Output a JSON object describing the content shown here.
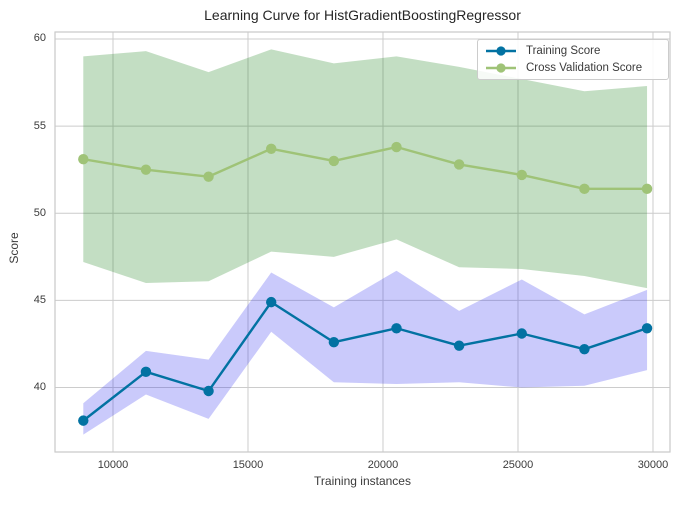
{
  "chart_data": {
    "type": "line",
    "title": "Learning Curve for HistGradientBoostingRegressor",
    "xlabel": "Training instances",
    "ylabel": "Score",
    "x": [
      8900,
      11220,
      13540,
      15860,
      18180,
      20500,
      22820,
      25140,
      27460,
      29780
    ],
    "series": [
      {
        "name": "Cross Validation Score",
        "color": "#9fc377",
        "band_color": "#0f7d0f",
        "band_opacity": 0.25,
        "values": [
          53.1,
          52.5,
          52.1,
          53.7,
          53.0,
          53.8,
          52.8,
          52.2,
          51.4,
          51.4
        ],
        "band_lower": [
          47.2,
          46.0,
          46.1,
          47.8,
          47.5,
          48.5,
          46.9,
          46.8,
          46.4,
          45.7
        ],
        "band_upper": [
          59.0,
          59.3,
          58.1,
          59.4,
          58.6,
          59.0,
          58.4,
          57.7,
          57.0,
          57.3
        ]
      },
      {
        "name": "Training Score",
        "color": "#0272a2",
        "band_color": "#2222ee",
        "band_opacity": 0.24,
        "values": [
          38.1,
          40.9,
          39.8,
          44.9,
          42.6,
          43.4,
          42.4,
          43.1,
          42.2,
          43.4
        ],
        "band_lower": [
          37.3,
          39.6,
          38.2,
          43.2,
          40.3,
          40.2,
          40.3,
          40.0,
          40.1,
          41.0
        ],
        "band_upper": [
          39.1,
          42.1,
          41.6,
          46.6,
          44.6,
          46.7,
          44.4,
          46.2,
          44.2,
          45.6
        ]
      }
    ],
    "legend_order": [
      "Training Score",
      "Cross Validation Score"
    ],
    "legend_position": "upper right",
    "grid": true,
    "xticks": [
      10000,
      15000,
      20000,
      25000,
      30000
    ],
    "yticks": [
      40,
      45,
      50,
      55,
      60
    ],
    "xlim": [
      7852,
      30630
    ],
    "ylim": [
      36.3,
      60.4
    ],
    "colors": {
      "grid": "#cccccc",
      "spine": "#c9c9c9",
      "title_text": "#262626",
      "tick_text": "#3b3b3b"
    }
  }
}
